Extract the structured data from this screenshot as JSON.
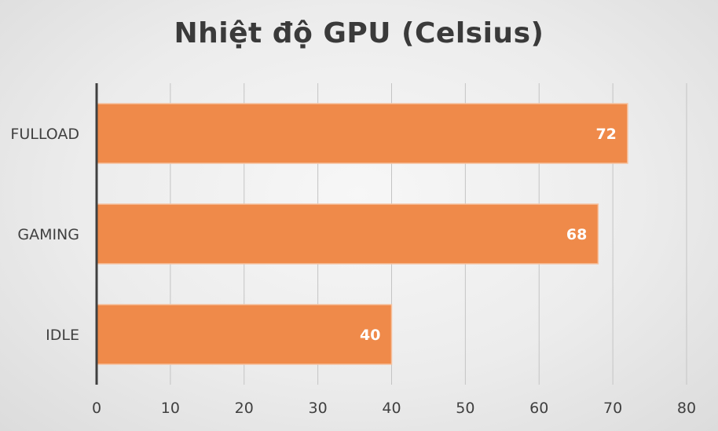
{
  "chart_data": {
    "type": "bar",
    "orientation": "horizontal",
    "title": "Nhiệt độ GPU (Celsius)",
    "categories": [
      "FULLOAD",
      "GAMING",
      "IDLE"
    ],
    "values": [
      72,
      68,
      40
    ],
    "xlim": [
      0,
      80
    ],
    "x_ticks": [
      0,
      10,
      20,
      30,
      40,
      50,
      60,
      70,
      80
    ],
    "grid": true,
    "data_labels": true,
    "bar_color": "#ef8a4a"
  }
}
